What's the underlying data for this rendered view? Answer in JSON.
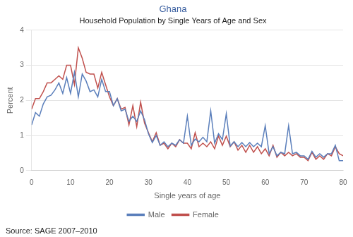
{
  "chart_data": {
    "type": "line",
    "title": "Ghana",
    "subtitle": "Household Population by Single Years of Age and Sex",
    "xlabel": "Single years of age",
    "ylabel": "Percent",
    "annotation": "Source: SAGE 2007–2010",
    "x": [
      0,
      1,
      2,
      3,
      4,
      5,
      6,
      7,
      8,
      9,
      10,
      11,
      12,
      13,
      14,
      15,
      16,
      17,
      18,
      19,
      20,
      21,
      22,
      23,
      24,
      25,
      26,
      27,
      28,
      29,
      30,
      31,
      32,
      33,
      34,
      35,
      36,
      37,
      38,
      39,
      40,
      41,
      42,
      43,
      44,
      45,
      46,
      47,
      48,
      49,
      50,
      51,
      52,
      53,
      54,
      55,
      56,
      57,
      58,
      59,
      60,
      61,
      62,
      63,
      64,
      65,
      66,
      67,
      68,
      69,
      70,
      71,
      72,
      73,
      74,
      75,
      76,
      77,
      78,
      79,
      80
    ],
    "series": [
      {
        "name": "Male",
        "color": "#5b7fbb",
        "values": [
          1.3,
          1.65,
          1.55,
          1.9,
          2.1,
          2.15,
          2.3,
          2.5,
          2.2,
          2.65,
          2.2,
          2.8,
          2.1,
          2.75,
          2.55,
          2.25,
          2.3,
          2.1,
          2.6,
          2.25,
          2.25,
          1.85,
          2.05,
          1.7,
          1.75,
          1.4,
          1.55,
          1.4,
          1.7,
          1.45,
          1.05,
          0.8,
          1.0,
          0.72,
          0.82,
          0.68,
          0.78,
          0.72,
          0.88,
          0.78,
          1.55,
          0.72,
          0.9,
          0.82,
          0.95,
          0.82,
          1.7,
          0.78,
          1.05,
          0.88,
          1.62,
          0.7,
          0.82,
          0.68,
          0.8,
          0.68,
          0.8,
          0.68,
          0.78,
          0.68,
          1.28,
          0.48,
          0.68,
          0.42,
          0.52,
          0.48,
          1.28,
          0.48,
          0.52,
          0.42,
          0.42,
          0.32,
          0.55,
          0.38,
          0.48,
          0.38,
          0.48,
          0.48,
          0.72,
          0.28,
          0.28
        ]
      },
      {
        "name": "Female",
        "color": "#c0504d",
        "values": [
          1.75,
          2.05,
          2.05,
          2.25,
          2.5,
          2.5,
          2.6,
          2.7,
          2.6,
          3.0,
          3.0,
          2.45,
          3.5,
          3.2,
          2.8,
          2.75,
          2.75,
          2.35,
          2.8,
          2.45,
          2.1,
          1.85,
          2.05,
          1.75,
          1.8,
          1.3,
          1.85,
          1.25,
          1.95,
          1.35,
          1.08,
          0.82,
          1.08,
          0.72,
          0.78,
          0.62,
          0.78,
          0.68,
          0.88,
          0.78,
          0.78,
          0.62,
          1.08,
          0.68,
          0.78,
          0.68,
          0.82,
          0.62,
          0.98,
          0.72,
          0.98,
          0.68,
          0.82,
          0.58,
          0.72,
          0.52,
          0.72,
          0.52,
          0.68,
          0.48,
          0.62,
          0.42,
          0.72,
          0.38,
          0.52,
          0.42,
          0.52,
          0.42,
          0.48,
          0.38,
          0.38,
          0.28,
          0.52,
          0.32,
          0.42,
          0.32,
          0.48,
          0.42,
          0.68,
          0.48,
          0.42
        ]
      }
    ],
    "xlim": [
      0,
      80
    ],
    "ylim": [
      0,
      4
    ],
    "xticks": [
      0,
      10,
      20,
      30,
      40,
      50,
      60,
      70,
      80
    ],
    "yticks": [
      0,
      1,
      2,
      3,
      4
    ],
    "grid": "y",
    "legend": "bottom"
  }
}
